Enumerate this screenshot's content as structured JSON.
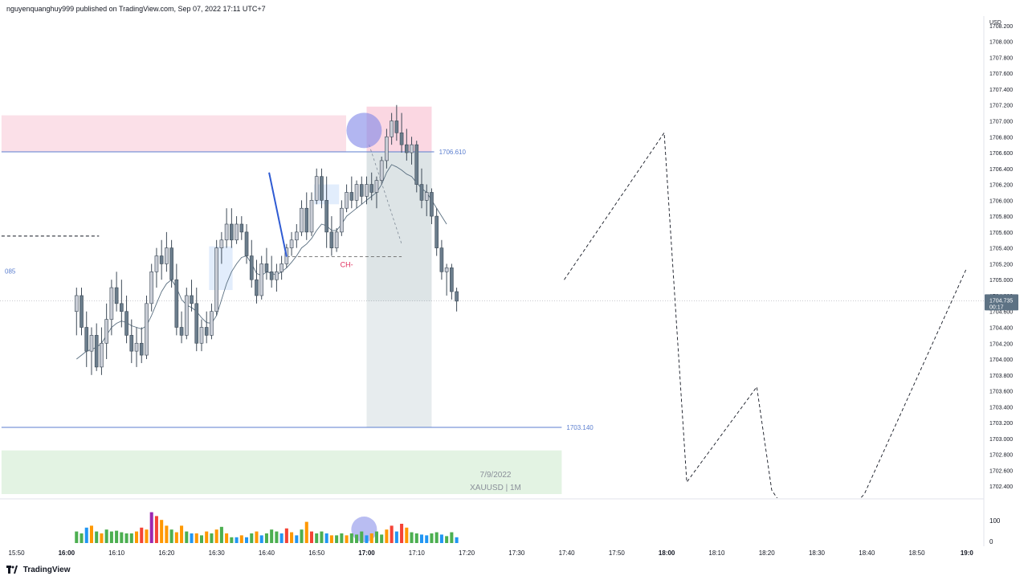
{
  "header": {
    "published_text": "nguyenquanghuy999 published on TradingView.com, Sep 07, 2022 17:11 UTC+7"
  },
  "footer": {
    "brand": "TradingView"
  },
  "colors": {
    "up": "#c9cdd6",
    "down": "#6b7d8c",
    "ma": "#5a6f80",
    "supply_zone": "#fbe0e8",
    "demand_zone": "#e3f3e3",
    "short_position_target": "#cfd8dc",
    "short_position_stop": "#fbd3df",
    "blue_line": "#5b7ecf",
    "label_red": "#e0325f",
    "highlight_circle": "#7f86e8",
    "vol_green": "#4caf50",
    "vol_orange": "#ff9800",
    "vol_blue": "#2196f3",
    "vol_red": "#f44336",
    "vol_purple": "#9c27b0"
  },
  "chart_data": {
    "type": "candlestick",
    "symbol_label": "XAUUSD | 1M",
    "date_label": "7/9/2022",
    "currency": "USD",
    "y_axis_ticks": [
      "1708.200",
      "1708.000",
      "1707.800",
      "1707.600",
      "1707.400",
      "1707.200",
      "1707.000",
      "1706.800",
      "1706.600",
      "1706.400",
      "1706.200",
      "1706.000",
      "1705.800",
      "1705.600",
      "1705.400",
      "1705.200",
      "1705.000",
      "1704.800",
      "1704.600",
      "1704.400",
      "1704.200",
      "1704.000",
      "1703.800",
      "1703.600",
      "1703.400",
      "1703.200",
      "1703.000",
      "1702.800",
      "1702.600",
      "1702.400"
    ],
    "x_axis_ticks": [
      {
        "t": -12,
        "label": "15:50",
        "bold": false
      },
      {
        "t": -2,
        "label": "16:00",
        "bold": true
      },
      {
        "t": 8,
        "label": "16:10",
        "bold": false
      },
      {
        "t": 18,
        "label": "16:20",
        "bold": false
      },
      {
        "t": 28,
        "label": "16:30",
        "bold": false
      },
      {
        "t": 38,
        "label": "16:40",
        "bold": false
      },
      {
        "t": 48,
        "label": "16:50",
        "bold": false
      },
      {
        "t": 58,
        "label": "17:00",
        "bold": true
      },
      {
        "t": 68,
        "label": "17:10",
        "bold": false
      },
      {
        "t": 78,
        "label": "17:20",
        "bold": false
      },
      {
        "t": 88,
        "label": "17:30",
        "bold": false
      },
      {
        "t": 98,
        "label": "17:40",
        "bold": false
      },
      {
        "t": 108,
        "label": "17:50",
        "bold": false
      },
      {
        "t": 118,
        "label": "18:00",
        "bold": true
      },
      {
        "t": 128,
        "label": "18:10",
        "bold": false
      },
      {
        "t": 138,
        "label": "18:20",
        "bold": false
      },
      {
        "t": 148,
        "label": "18:30",
        "bold": false
      },
      {
        "t": 158,
        "label": "18:40",
        "bold": false
      },
      {
        "t": 168,
        "label": "18:50",
        "bold": false
      },
      {
        "t": 178,
        "label": "19:0",
        "bold": true
      }
    ],
    "last_price": "1704.735",
    "countdown": "00:17",
    "levels": [
      {
        "value": 1706.61,
        "label": "1706.610"
      },
      {
        "value": 1703.14,
        "label": "1703.140"
      }
    ],
    "left_cut_label": "085",
    "choch_label": "CH-",
    "volume_axis": [
      "100",
      "0"
    ],
    "candles": [
      {
        "o": 1704.6,
        "h": 1704.9,
        "l": 1704.3,
        "c": 1704.8
      },
      {
        "o": 1704.8,
        "h": 1704.9,
        "l": 1704.3,
        "c": 1704.4
      },
      {
        "o": 1704.4,
        "h": 1704.6,
        "l": 1703.9,
        "c": 1704.1
      },
      {
        "o": 1704.1,
        "h": 1704.4,
        "l": 1703.8,
        "c": 1704.3
      },
      {
        "o": 1704.3,
        "h": 1704.45,
        "l": 1703.85,
        "c": 1703.9
      },
      {
        "o": 1703.9,
        "h": 1704.4,
        "l": 1703.8,
        "c": 1704.2
      },
      {
        "o": 1704.2,
        "h": 1704.7,
        "l": 1704.0,
        "c": 1704.5
      },
      {
        "o": 1704.5,
        "h": 1705.0,
        "l": 1704.3,
        "c": 1704.9
      },
      {
        "o": 1704.9,
        "h": 1705.1,
        "l": 1704.6,
        "c": 1704.7
      },
      {
        "o": 1704.7,
        "h": 1705.0,
        "l": 1704.4,
        "c": 1704.6
      },
      {
        "o": 1704.6,
        "h": 1704.8,
        "l": 1704.2,
        "c": 1704.3
      },
      {
        "o": 1704.3,
        "h": 1704.5,
        "l": 1703.95,
        "c": 1704.1
      },
      {
        "o": 1704.1,
        "h": 1704.4,
        "l": 1703.9,
        "c": 1704.2
      },
      {
        "o": 1704.2,
        "h": 1704.4,
        "l": 1703.95,
        "c": 1704.05
      },
      {
        "o": 1704.05,
        "h": 1704.8,
        "l": 1704.0,
        "c": 1704.7
      },
      {
        "o": 1704.7,
        "h": 1705.2,
        "l": 1704.6,
        "c": 1705.1
      },
      {
        "o": 1705.1,
        "h": 1705.4,
        "l": 1704.9,
        "c": 1705.3
      },
      {
        "o": 1705.3,
        "h": 1705.5,
        "l": 1705.0,
        "c": 1705.2
      },
      {
        "o": 1705.2,
        "h": 1705.6,
        "l": 1705.1,
        "c": 1705.4
      },
      {
        "o": 1705.4,
        "h": 1705.5,
        "l": 1704.9,
        "c": 1705.0
      },
      {
        "o": 1705.0,
        "h": 1705.2,
        "l": 1704.3,
        "c": 1704.4
      },
      {
        "o": 1704.4,
        "h": 1704.6,
        "l": 1704.2,
        "c": 1704.3
      },
      {
        "o": 1704.3,
        "h": 1704.9,
        "l": 1704.25,
        "c": 1704.8
      },
      {
        "o": 1704.8,
        "h": 1705.0,
        "l": 1704.6,
        "c": 1704.7
      },
      {
        "o": 1704.7,
        "h": 1704.9,
        "l": 1704.1,
        "c": 1704.2
      },
      {
        "o": 1704.2,
        "h": 1704.5,
        "l": 1704.1,
        "c": 1704.4
      },
      {
        "o": 1704.4,
        "h": 1704.6,
        "l": 1704.2,
        "c": 1704.3
      },
      {
        "o": 1704.3,
        "h": 1704.7,
        "l": 1704.25,
        "c": 1704.6
      },
      {
        "o": 1704.6,
        "h": 1705.5,
        "l": 1704.55,
        "c": 1705.4
      },
      {
        "o": 1705.4,
        "h": 1705.6,
        "l": 1705.2,
        "c": 1705.5
      },
      {
        "o": 1705.5,
        "h": 1705.9,
        "l": 1705.4,
        "c": 1705.7
      },
      {
        "o": 1705.7,
        "h": 1705.9,
        "l": 1705.4,
        "c": 1705.5
      },
      {
        "o": 1705.5,
        "h": 1705.8,
        "l": 1705.45,
        "c": 1705.7
      },
      {
        "o": 1705.7,
        "h": 1705.8,
        "l": 1705.5,
        "c": 1705.6
      },
      {
        "o": 1705.6,
        "h": 1705.7,
        "l": 1705.2,
        "c": 1705.3
      },
      {
        "o": 1705.3,
        "h": 1705.5,
        "l": 1704.9,
        "c": 1705.0
      },
      {
        "o": 1705.0,
        "h": 1705.25,
        "l": 1704.7,
        "c": 1704.8
      },
      {
        "o": 1704.8,
        "h": 1705.3,
        "l": 1704.75,
        "c": 1705.2
      },
      {
        "o": 1705.2,
        "h": 1705.4,
        "l": 1705.0,
        "c": 1705.1
      },
      {
        "o": 1705.1,
        "h": 1705.3,
        "l": 1704.9,
        "c": 1705.0
      },
      {
        "o": 1705.0,
        "h": 1705.2,
        "l": 1704.85,
        "c": 1705.1
      },
      {
        "o": 1705.1,
        "h": 1705.3,
        "l": 1705.0,
        "c": 1705.2
      },
      {
        "o": 1705.2,
        "h": 1705.45,
        "l": 1705.15,
        "c": 1705.4
      },
      {
        "o": 1705.4,
        "h": 1705.6,
        "l": 1705.3,
        "c": 1705.5
      },
      {
        "o": 1705.5,
        "h": 1705.7,
        "l": 1705.4,
        "c": 1705.6
      },
      {
        "o": 1705.6,
        "h": 1706.0,
        "l": 1705.55,
        "c": 1705.9
      },
      {
        "o": 1705.9,
        "h": 1706.1,
        "l": 1705.5,
        "c": 1705.6
      },
      {
        "o": 1705.6,
        "h": 1706.1,
        "l": 1705.55,
        "c": 1706.0
      },
      {
        "o": 1706.0,
        "h": 1706.4,
        "l": 1705.95,
        "c": 1706.3
      },
      {
        "o": 1706.3,
        "h": 1706.4,
        "l": 1705.9,
        "c": 1706.0
      },
      {
        "o": 1706.0,
        "h": 1706.3,
        "l": 1705.4,
        "c": 1705.6
      },
      {
        "o": 1705.6,
        "h": 1705.8,
        "l": 1705.3,
        "c": 1705.4
      },
      {
        "o": 1705.4,
        "h": 1705.65,
        "l": 1705.35,
        "c": 1705.6
      },
      {
        "o": 1705.6,
        "h": 1706.0,
        "l": 1705.55,
        "c": 1705.9
      },
      {
        "o": 1705.9,
        "h": 1706.2,
        "l": 1705.85,
        "c": 1706.1
      },
      {
        "o": 1706.1,
        "h": 1706.3,
        "l": 1705.9,
        "c": 1706.0
      },
      {
        "o": 1706.0,
        "h": 1706.25,
        "l": 1705.9,
        "c": 1706.2
      },
      {
        "o": 1706.2,
        "h": 1706.3,
        "l": 1705.95,
        "c": 1706.05
      },
      {
        "o": 1706.05,
        "h": 1706.3,
        "l": 1705.95,
        "c": 1706.2
      },
      {
        "o": 1706.2,
        "h": 1706.35,
        "l": 1706.0,
        "c": 1706.1
      },
      {
        "o": 1706.1,
        "h": 1706.3,
        "l": 1705.9,
        "c": 1706.25
      },
      {
        "o": 1706.25,
        "h": 1706.55,
        "l": 1706.2,
        "c": 1706.5
      },
      {
        "o": 1706.5,
        "h": 1706.9,
        "l": 1706.4,
        "c": 1706.8
      },
      {
        "o": 1706.8,
        "h": 1707.1,
        "l": 1706.7,
        "c": 1707.0
      },
      {
        "o": 1707.0,
        "h": 1707.2,
        "l": 1706.75,
        "c": 1706.85
      },
      {
        "o": 1706.85,
        "h": 1707.1,
        "l": 1706.6,
        "c": 1706.7
      },
      {
        "o": 1706.7,
        "h": 1706.9,
        "l": 1706.5,
        "c": 1706.6
      },
      {
        "o": 1706.6,
        "h": 1706.8,
        "l": 1706.45,
        "c": 1706.7
      },
      {
        "o": 1706.7,
        "h": 1706.75,
        "l": 1706.1,
        "c": 1706.2
      },
      {
        "o": 1706.2,
        "h": 1706.4,
        "l": 1705.9,
        "c": 1706.0
      },
      {
        "o": 1706.0,
        "h": 1706.2,
        "l": 1705.8,
        "c": 1706.1
      },
      {
        "o": 1706.1,
        "h": 1706.15,
        "l": 1705.7,
        "c": 1705.8
      },
      {
        "o": 1705.8,
        "h": 1705.9,
        "l": 1705.3,
        "c": 1705.4
      },
      {
        "o": 1705.4,
        "h": 1705.5,
        "l": 1705.0,
        "c": 1705.1
      },
      {
        "o": 1705.1,
        "h": 1705.2,
        "l": 1704.8,
        "c": 1705.15
      },
      {
        "o": 1705.15,
        "h": 1705.2,
        "l": 1704.75,
        "c": 1704.85
      },
      {
        "o": 1704.85,
        "h": 1704.9,
        "l": 1704.6,
        "c": 1704.73
      }
    ],
    "ma_values": [
      1704.0,
      1704.05,
      1704.1,
      1704.12,
      1704.15,
      1704.2,
      1704.3,
      1704.4,
      1704.45,
      1704.48,
      1704.46,
      1704.42,
      1704.4,
      1704.38,
      1704.42,
      1704.55,
      1704.7,
      1704.85,
      1704.95,
      1705.0,
      1704.9,
      1704.75,
      1704.68,
      1704.65,
      1704.6,
      1704.52,
      1704.46,
      1704.45,
      1704.55,
      1704.75,
      1704.95,
      1705.1,
      1705.2,
      1705.28,
      1705.3,
      1705.2,
      1705.08,
      1705.05,
      1705.1,
      1705.08,
      1705.06,
      1705.1,
      1705.15,
      1705.22,
      1705.3,
      1705.4,
      1705.45,
      1705.52,
      1705.62,
      1705.7,
      1705.68,
      1705.62,
      1705.62,
      1705.7,
      1705.8,
      1705.85,
      1705.9,
      1705.95,
      1706.0,
      1706.05,
      1706.1,
      1706.2,
      1706.35,
      1706.45,
      1706.42,
      1706.38,
      1706.33,
      1706.3,
      1706.22,
      1706.15,
      1706.1,
      1706.0,
      1705.9,
      1705.8,
      1705.7
    ],
    "volume": [
      {
        "v": 30,
        "c": "green"
      },
      {
        "v": 25,
        "c": "green"
      },
      {
        "v": 40,
        "c": "blue"
      },
      {
        "v": 45,
        "c": "orange"
      },
      {
        "v": 30,
        "c": "green"
      },
      {
        "v": 25,
        "c": "orange"
      },
      {
        "v": 35,
        "c": "green"
      },
      {
        "v": 30,
        "c": "green"
      },
      {
        "v": 32,
        "c": "green"
      },
      {
        "v": 28,
        "c": "green"
      },
      {
        "v": 25,
        "c": "green"
      },
      {
        "v": 25,
        "c": "green"
      },
      {
        "v": 30,
        "c": "orange"
      },
      {
        "v": 40,
        "c": "red"
      },
      {
        "v": 35,
        "c": "orange"
      },
      {
        "v": 80,
        "c": "purple"
      },
      {
        "v": 70,
        "c": "red"
      },
      {
        "v": 60,
        "c": "orange"
      },
      {
        "v": 45,
        "c": "orange"
      },
      {
        "v": 35,
        "c": "green"
      },
      {
        "v": 28,
        "c": "orange"
      },
      {
        "v": 45,
        "c": "orange"
      },
      {
        "v": 30,
        "c": "green"
      },
      {
        "v": 25,
        "c": "blue"
      },
      {
        "v": 25,
        "c": "orange"
      },
      {
        "v": 20,
        "c": "green"
      },
      {
        "v": 30,
        "c": "orange"
      },
      {
        "v": 25,
        "c": "green"
      },
      {
        "v": 35,
        "c": "orange"
      },
      {
        "v": 42,
        "c": "green"
      },
      {
        "v": 25,
        "c": "orange"
      },
      {
        "v": 15,
        "c": "green"
      },
      {
        "v": 15,
        "c": "blue"
      },
      {
        "v": 20,
        "c": "orange"
      },
      {
        "v": 15,
        "c": "blue"
      },
      {
        "v": 25,
        "c": "green"
      },
      {
        "v": 30,
        "c": "orange"
      },
      {
        "v": 20,
        "c": "blue"
      },
      {
        "v": 25,
        "c": "green"
      },
      {
        "v": 35,
        "c": "green"
      },
      {
        "v": 30,
        "c": "green"
      },
      {
        "v": 25,
        "c": "blue"
      },
      {
        "v": 38,
        "c": "red"
      },
      {
        "v": 28,
        "c": "orange"
      },
      {
        "v": 20,
        "c": "blue"
      },
      {
        "v": 35,
        "c": "green"
      },
      {
        "v": 55,
        "c": "orange"
      },
      {
        "v": 30,
        "c": "red"
      },
      {
        "v": 25,
        "c": "green"
      },
      {
        "v": 30,
        "c": "green"
      },
      {
        "v": 25,
        "c": "blue"
      },
      {
        "v": 20,
        "c": "orange"
      },
      {
        "v": 20,
        "c": "green"
      },
      {
        "v": 25,
        "c": "green"
      },
      {
        "v": 20,
        "c": "orange"
      },
      {
        "v": 25,
        "c": "green"
      },
      {
        "v": 22,
        "c": "green"
      },
      {
        "v": 30,
        "c": "green"
      },
      {
        "v": 20,
        "c": "blue"
      },
      {
        "v": 25,
        "c": "orange"
      },
      {
        "v": 30,
        "c": "green"
      },
      {
        "v": 22,
        "c": "green"
      },
      {
        "v": 35,
        "c": "orange"
      },
      {
        "v": 45,
        "c": "red"
      },
      {
        "v": 30,
        "c": "blue"
      },
      {
        "v": 50,
        "c": "red"
      },
      {
        "v": 40,
        "c": "orange"
      },
      {
        "v": 28,
        "c": "green"
      },
      {
        "v": 25,
        "c": "green"
      },
      {
        "v": 22,
        "c": "blue"
      },
      {
        "v": 20,
        "c": "blue"
      },
      {
        "v": 25,
        "c": "green"
      },
      {
        "v": 28,
        "c": "green"
      },
      {
        "v": 22,
        "c": "blue"
      },
      {
        "v": 18,
        "c": "green"
      },
      {
        "v": 28,
        "c": "green"
      },
      {
        "v": 15,
        "c": "blue"
      }
    ],
    "projection_path": [
      {
        "t": 97.5,
        "p": 1705.0
      },
      {
        "t": 117.5,
        "p": 1706.85
      },
      {
        "t": 122.0,
        "p": 1702.45
      },
      {
        "t": 136.0,
        "p": 1703.65
      },
      {
        "t": 139.0,
        "p": 1702.35
      },
      {
        "t": 147.0,
        "p": 1701.6
      },
      {
        "t": 157.5,
        "p": 1702.3
      },
      {
        "t": 178.0,
        "p": 1705.15
      }
    ],
    "x_min": -15.3,
    "x_max": 181.4,
    "y_min": 1702.25,
    "y_max": 1708.3
  }
}
